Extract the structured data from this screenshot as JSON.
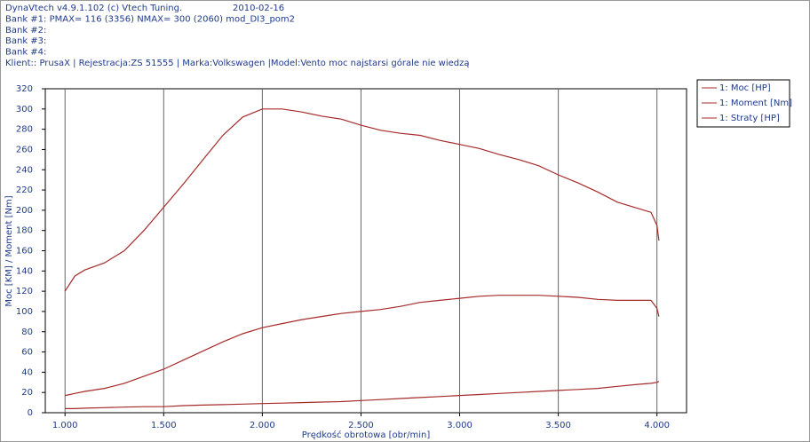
{
  "header": {
    "lines": [
      "DynaVtech v4.9.1.102 (c) Vtech Tuning.",
      "Bank #1: PMAX= 116 (3356)    NMAX= 300 (2060)   mod_DI3_pom2",
      "Bank #2:",
      "Bank #3:",
      "Bank #4:",
      "Klient:: PrusaX | Rejestracja:ZS 51555 | Marka:Volkswagen |Model:Vento moc najstarsi górale nie wiedzą"
    ],
    "date": "2010-02-16"
  },
  "chart_data": {
    "type": "line",
    "x_label": "Prędkość obrotowa [obr/min]",
    "y_label": "Moc [KM] / Moment [Nm]",
    "x": [
      1000,
      1050,
      1100,
      1200,
      1300,
      1400,
      1500,
      1600,
      1700,
      1800,
      1900,
      2000,
      2100,
      2200,
      2300,
      2400,
      2500,
      2600,
      2700,
      2800,
      2900,
      3000,
      3100,
      3200,
      3300,
      3400,
      3500,
      3600,
      3700,
      3800,
      3900,
      3970,
      4000,
      4010
    ],
    "series": [
      {
        "name": "1: Moc [HP]",
        "color": "#a52a2a",
        "values": [
          17,
          19,
          21,
          24,
          29,
          36,
          43,
          52,
          61,
          70,
          78,
          84,
          88,
          92,
          95,
          98,
          100,
          102,
          105,
          109,
          111,
          113,
          115,
          116,
          116,
          116,
          115,
          114,
          112,
          111,
          111,
          111,
          103,
          95
        ]
      },
      {
        "name": "1: Moment [Nm]",
        "color": "#a52a2a",
        "values": [
          120,
          135,
          141,
          148,
          160,
          180,
          203,
          226,
          250,
          274,
          292,
          300,
          300,
          297,
          293,
          290,
          284,
          279,
          276,
          274,
          269,
          265,
          261,
          255,
          250,
          244,
          235,
          227,
          218,
          208,
          202,
          198,
          185,
          170
        ]
      },
      {
        "name": "1: Straty [HP]",
        "color": "#a52a2a",
        "values": [
          4,
          4,
          4.5,
          5,
          5.5,
          6,
          6,
          7,
          7.5,
          8,
          8.5,
          9,
          9.5,
          10,
          10.5,
          11,
          12,
          13,
          14,
          15,
          16,
          17,
          18,
          19,
          20,
          21,
          22,
          23,
          24,
          26,
          28,
          29,
          30,
          31
        ]
      }
    ],
    "xlim": [
      900,
      4150
    ],
    "ylim": [
      0,
      320
    ],
    "xticks": [
      {
        "value": 1000,
        "label": "1.000"
      },
      {
        "value": 1500,
        "label": "1.500"
      },
      {
        "value": 2000,
        "label": "2.000"
      },
      {
        "value": 2500,
        "label": "2.500"
      },
      {
        "value": 3000,
        "label": "3.000"
      },
      {
        "value": 3500,
        "label": "3.500"
      },
      {
        "value": 4000,
        "label": "4.000"
      }
    ],
    "yticks": [
      0,
      20,
      40,
      60,
      80,
      100,
      120,
      140,
      160,
      180,
      200,
      220,
      240,
      260,
      280,
      300,
      320
    ],
    "grid": "x",
    "legend": "right"
  }
}
